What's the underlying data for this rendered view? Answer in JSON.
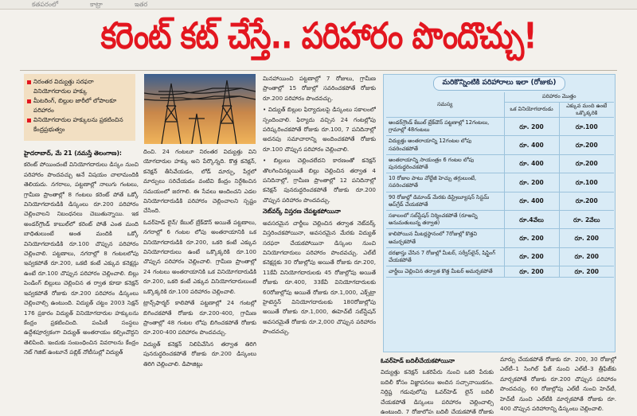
{
  "top_strip": [
    "కతపరంలో",
    "కాట్రా",
    "ఇతర"
  ],
  "headline": "కరెంట్ కట్ చేస్తే.. పరిహారం పొందొచ్చు!",
  "bullets": [
    "నిరంతర విద్యుత్తు సరఫరా వినియోగదారుల హక్కు",
    "మీటరింగ్, బిల్లుల జారీలో లోపాలకూ పరిహారం",
    "వినియోగదారుల హక్కులను ప్రకటించిన కేంద్రప్రభుత్వం"
  ],
  "col1": {
    "dateline": "హైదరాబాద్, మే 21 (నమస్తే తెలంగాణ):",
    "paragraphs": [
      "కరెంట్ పోయిందంటే వినియోగదారులు డిస్కం నుంచి పరిహారం పొందవచ్చు అనే విషయం చాలామందికి తెలియదు. నగరాలు, పట్టణాల్లో నాలుగు గంటలు, గ్రామీణ ప్రాంతాల్లో 8 గంటలు కరెంట్ పోతే ఒక్కో వినియోగదారుడికి డిస్కంలు రూ.200 పరిహారం చెల్లించాలని నిబంధనలు చెబుతున్నాయి. ఇక అండర్‌గ్రౌండ్ కాబుల్‌లో కరెంట్ పోతే ఎంత మంది బాధితులుంటే అంత మందికి ఒక్కో వినియోగదారుడికి రూ.100 చొప్పున పరిహారం చెల్లించాలి. పట్టణాలు, నగరాల్లో 8 గంటలలోపు ఇవ్వకపోతే రూ.200, ఒకటి కంటే ఎక్కువ కనెక్షన్లు ఉంటే రూ.100 చొప్పున పరిహారం చెల్లించాలి. బిల్లు పెండింగ్ బిల్లులు చెల్లించిన త ర్వాత కూడా కనెక్షన్ ఇవ్వకపోతే రోజుకు రూ.200 పరిహారం డిస్కంలు చెల్లించాల్సి ఉంటుంది. విద్యుత్ చట్టం 2003 సెక్షన్ 176 ప్రకారం విద్యుత్ వినియోగదారుల హక్కులను కేంద్రం ప్రకటించింది. పంపిణీ సంస్థలు ఉద్దేశపూర్వకంగా విద్యుత్ అంతరాయం కల్పించొద్దని తెలిపింది. ఇందుకు సంబంధించిన వివరాలను కేంద్రం నెట్ గెజిట్ ఉంటూనే పబ్లిక్ నోటీసుల్లో విద్యుత్"
    ]
  },
  "col2": {
    "paragraphs": [
      "దించి. 24 గంటలూ నిరంతర విద్యుత్తు విని యోగదారుల హక్కు అని పేర్కొన్నది. కొత్త కనెక్షన్, కనెక్షన్ తీసివేయడం, లోడ్ మార్పు, పేర్లలో మార్పులు సరిచేయడం వంటివి కేంద్రం నిర్దేశించిన సమయంలో జరగాలి. ఈ సేవలు అందించని ఎడల వినియోగదారుడికి పరిహారం చెల్లించాలని స్పష్టం చేసింది.",
      "ఓవర్‌హెడ్ లైన్/ కేబుల్ బ్రేక్‌డౌన్ అయితే పట్టణాలు, నగరాల్లో 6 గంటల లోపు అంతరాయానికి ఒక వినియోగదారుడికి రూ.200, ఒకరి కంటే ఎక్కువ వినియోగదారులు ఉంటే ఒక్కొక్కరికి రూ.100 చొప్పున పరిహారం చెల్లించాలి. గ్రామీణ ప్రాంతాల్లో 24 గంటలు అంతరాయానికి ఒక వినియోగదారుడికి రూ.200, ఒకరి కంటే ఎక్కువ వినియోగదారులుంటే ఒక్కొక్కరికి రూ.100 పరిహారం చెల్లించాలి.",
      "ట్రాన్స్‌ఫార్మర్ కాలిపోతే పట్టణాల్లో 24 గంటల్లో బిగించకపోతే రోజుకు రూ.200-400, గ్రామీణ ప్రాంతాల్లో 48 గంటల లోపు బిగించకపోతే రోజుకు రూ.200-400 పరిహారం పొందవచ్చు.",
      "విద్యుత్ కనెక్షన్ నిలిపివేసిన తర్వాత తిరిగి పునరుద్ధరించకపోతే రోజుకు రూ.200 డిస్కంలు తిరిగి చెల్లించాలి. డిపాజిట్లు"
    ]
  },
  "col3": {
    "paragraphs": [
      "మినహాయించి పట్టణాల్లో 7 రోజులు, గ్రామీణ ప్రాంతాల్లో 15 రోజుల్లో సవరించకపోతే రోజుకు రూ.200 పరిహారం పొందవచ్చు.",
      "• విద్యుత్ బిల్లుల ఫిర్యాదులపై డిస్కంలు సకాలంలో స్పందించాలి. ఫిర్యాదు వచ్చిన 24 గంటల్లోపు పరిష్కరించకపోతే రోజుకు రూ.100, 7 పనిదినాల్లో అదనపు సమాచారాన్ని అందించకపోతే రోజుకు రూ.100 చొప్పున పరిహారం చెల్లించాలి.",
      "• బిల్లులు చెల్లించలేదని కారణంతో కనెక్షన్ తొలగించినట్లయితే బిల్లు చెల్లించిన తర్వాత 4 పనిదినాల్లో, గ్రామీణ ప్రాంతాల్లో 12 పనిదినాల్లో కనెక్షన్ పునరుద్ధరించకపోతే రోజుకు రూ.200 చొప్పున పరిహారం పొందవచ్చు."
    ],
    "subheading": "నెట్‌వర్క్ విస్తరణ చేపట్టకపోయినా",
    "paragraphs2": [
      "అవసరమైన చార్జీలు చెల్లించిన తర్వాత నెట్‌వర్క్ విస్తరించకపోయినా, అవసరమైన మేరకు విద్యుత్ సరఫరా చేయకపోయినా డిస్కంల నుంచి వినియోగదారులు పరిహారం పొందవచ్చు. ఎల్‌టీ కనెక్షన్లకు 30 రోజుల్లోపు అయితే రోజుకు రూ.200, 11కేవీ వినియోగదారులకు 45 రోజుల్లోపు అయితే రోజుకు రూ.400, 33కేవీ వినియోగదారులకు 60రోజుల్లోపు అయితే రోజుకు రూ.1,000, ఎక్స్‌ట్రా హైటెన్షన్ వినియోగదారులకు 180రోజుల్లోపు అయితే రోజుకు రూ.1,000, ఈహెచ్‌టీ సబ్‌స్టేషన్ అవసరమైతే రోజుకు రూ.2,000 చొప్పున పరిహారం పొందవచ్చు."
    ]
  },
  "table": {
    "title": "మరికొన్నింటికి పరిహారాలు ఇలా (రోజుకు)",
    "header_issue": "సమస్య",
    "header_comp": "పరిహారం మొత్తం",
    "header_single": "ఒక వినియోగదారుడు",
    "header_multi": "ఎక్కువ మంది ఉంటే ఒక్కొక్కరికి",
    "rows": [
      {
        "issue": "అండర్‌గ్రౌండ్ కేబుల్ బ్రేక్‌డౌన్ పట్టణాల్లో 12గంటలు, గ్రామాల్లో 48గంటలు",
        "single": "రూ. 200",
        "multi": "రూ.100"
      },
      {
        "issue": "విద్యుత్తు అంతరాయాన్ని 12గంటల లోపు సవరించకపోతే",
        "single": "రూ. 400",
        "multi": "రూ.200"
      },
      {
        "issue": "అంతరాయాన్ని సాయంత్రం 6 గంటల లోపు పునరుద్ధరించకపోతే",
        "single": "రూ. 400",
        "multi": "రూ.200"
      },
      {
        "issue": "10 రోజుల పాటు వోల్టేజీ హెచ్చు తగ్గులుంటే, సవరించకపోతే",
        "single": "రూ. 200",
        "multi": "రూ.100"
      },
      {
        "issue": "90 రోజుల్లో డిమాండ్ మేరకు డిస్ట్రిబ్యూషన్ సిస్టమ్ అప్‌గ్రేడ్ చేయకపోతే",
        "single": "రూ. 400",
        "multi": "రూ.200"
      },
      {
        "issue": "సకాలంలో సబ్‌స్టేషన్ నిర్మించకపోతే (రూఅన్ని అనుమతులున్న తర్వాత)",
        "single": "రూ.4వేలు",
        "multi": "రూ. 2వేలు"
      },
      {
        "issue": "కాలిపోయిన మీటర్లస్థానంలో 7రోజుల్లో కొత్తవి అమర్చకపోతే",
        "single": "రూ. 200",
        "multi": "రూ. 200"
      },
      {
        "issue": "దరఖాస్తు చేసిన 7 రోజుల్లో మీటర్, సర్వీస్‌లైన్, షిఫ్టింగ్ చేయకపోతే",
        "single": "రూ. 200",
        "multi": "రూ. 200"
      },
      {
        "issue": "చార్జీలు చెల్లించిన తర్వాత కొత్త మీటర్ అమర్చకపోతే",
        "single": "రూ. 200",
        "multi": "రూ. 200"
      }
    ]
  },
  "col4": {
    "subheading": "ఓవర్‌హెడ్ బదిలీచేయకపోయినా",
    "paragraphs": [
      "విద్యుత్తు కనెక్షన్ ఒకరిపేరు నుంచి ఒకరి పేరుకు బదిలీ కోసం విజ్ఞాపనలు అందిన సచ్చానాయికనం. నిర్దిష్ట గడువులోపు ఓవర్‌హెడ్ లైన్ బదిలీ చేయకపోతే డిస్కంలు పరిహారం చెల్లించాల్సి ఉంటుంది. 7 రోజుల్లోపు బదిలీ చేయకపోతే రోజుకు రూ. 200, 7 రోజుల్లో క్యాటగిరి"
    ]
  },
  "col5": {
    "paragraphs": [
      "మార్పు చేయకపోతే రోజుకు రూ. 200, 30 రోజుల్లో ఎల్‌టీ–1 సింగిల్ ఫేజ్ నుంచి ఎల్‌టీ–3 త్రీఫేజ్‌కు మార్చకపోతే రోజుకు రూ.200 చొప్పున పరిహారం పొందవచ్చు. 60 రోజుల్లోపు ఎల్‌టీ నుంచి హెచ్‌టీ, హెచ్‌టీ నుంచి ఎల్‌టీకి మార్చకపోతే రోజుకు రూ. 400 చొప్పున పరిహారాన్ని డిస్కంలు చెల్లించాలి."
    ]
  },
  "colors": {
    "headline": "#e3161f",
    "bullet_bg": "#f2dfc2",
    "table_bg": "#d9ebf6"
  },
  "icons": [
    "bullet-square-icon",
    "lightning-bolt-icon"
  ]
}
